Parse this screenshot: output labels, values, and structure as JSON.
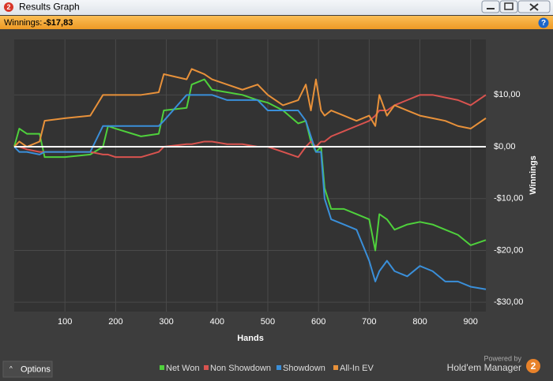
{
  "window": {
    "title": "Results Graph",
    "app_icon": "2",
    "help_icon": "?",
    "summary_label": "Winnings:",
    "summary_value": "-$17,83",
    "options_button": "Options",
    "powered_by": "Powered by",
    "brand": "Hold'em Manager",
    "brand_logo": "2"
  },
  "chart_data": {
    "type": "line",
    "x_label": "Hands",
    "y_label": "Winnings",
    "x": [
      0,
      10,
      25,
      50,
      60,
      100,
      150,
      175,
      185,
      200,
      250,
      285,
      295,
      340,
      350,
      375,
      390,
      420,
      450,
      480,
      500,
      530,
      560,
      575,
      585,
      595,
      605,
      612,
      625,
      650,
      675,
      700,
      712,
      720,
      735,
      750,
      775,
      800,
      825,
      850,
      875,
      900,
      930
    ],
    "series": [
      {
        "name": "Net Won",
        "color": "#4fd13c",
        "values": [
          0,
          3.5,
          2.5,
          2.5,
          -2,
          -2,
          -1.5,
          0,
          4,
          3.5,
          2,
          2.5,
          7,
          7.5,
          12,
          13,
          11,
          10.5,
          10,
          9,
          8.5,
          7,
          4.5,
          5,
          1,
          -1,
          0,
          -8,
          -12,
          -12,
          -13,
          -14,
          -20,
          -13,
          -14,
          -16,
          -15,
          -14.5,
          -15,
          -16,
          -17,
          -19,
          -18
        ]
      },
      {
        "name": "Non Showdown",
        "color": "#d9534f",
        "values": [
          0,
          0,
          -0.5,
          -1,
          -1,
          -1,
          -1,
          -1.5,
          -1.5,
          -2,
          -2,
          -1,
          0,
          0.5,
          0.5,
          1,
          1,
          0.5,
          0.5,
          0,
          0,
          -1,
          -2,
          0,
          1,
          0,
          1,
          1,
          2,
          3,
          4,
          5,
          6,
          7,
          7,
          8,
          9,
          10,
          10,
          9.5,
          9,
          8,
          10
        ]
      },
      {
        "name": "Showdown",
        "color": "#3a8fd9",
        "values": [
          0,
          -1,
          -1,
          -1.5,
          -1,
          -1,
          -1,
          4,
          4,
          4,
          4,
          4,
          5,
          10,
          10,
          10,
          10,
          9,
          9,
          9,
          7,
          7,
          7,
          5,
          2,
          -1,
          -1,
          -10,
          -14,
          -15,
          -16,
          -22,
          -26,
          -24,
          -22,
          -24,
          -25,
          -23,
          -24,
          -26,
          -26,
          -27,
          -27.5
        ]
      },
      {
        "name": "All-In EV",
        "color": "#e8913a",
        "values": [
          0,
          1,
          0,
          1,
          5,
          5.5,
          6,
          10,
          10,
          10,
          10,
          10.5,
          14,
          13,
          15,
          14,
          13,
          12,
          11,
          12,
          10,
          8,
          9,
          12,
          7,
          13,
          7,
          6,
          7,
          6,
          5,
          6,
          4,
          10,
          6,
          8,
          7,
          6,
          5.5,
          5,
          4,
          3.5,
          5.5
        ]
      }
    ],
    "xlim": [
      0,
      930
    ],
    "ylim": [
      -31.8,
      20.7
    ],
    "xticks": [
      100,
      200,
      300,
      400,
      500,
      600,
      700,
      800,
      900
    ],
    "yticks": [
      {
        "value": 10,
        "label": "$10,00"
      },
      {
        "value": 0,
        "label": "$0,00"
      },
      {
        "value": -10,
        "label": "-$10,00"
      },
      {
        "value": -20,
        "label": "-$20,00"
      },
      {
        "value": -30,
        "label": "-$30,00"
      }
    ],
    "grid": true,
    "legend": "bottom"
  }
}
